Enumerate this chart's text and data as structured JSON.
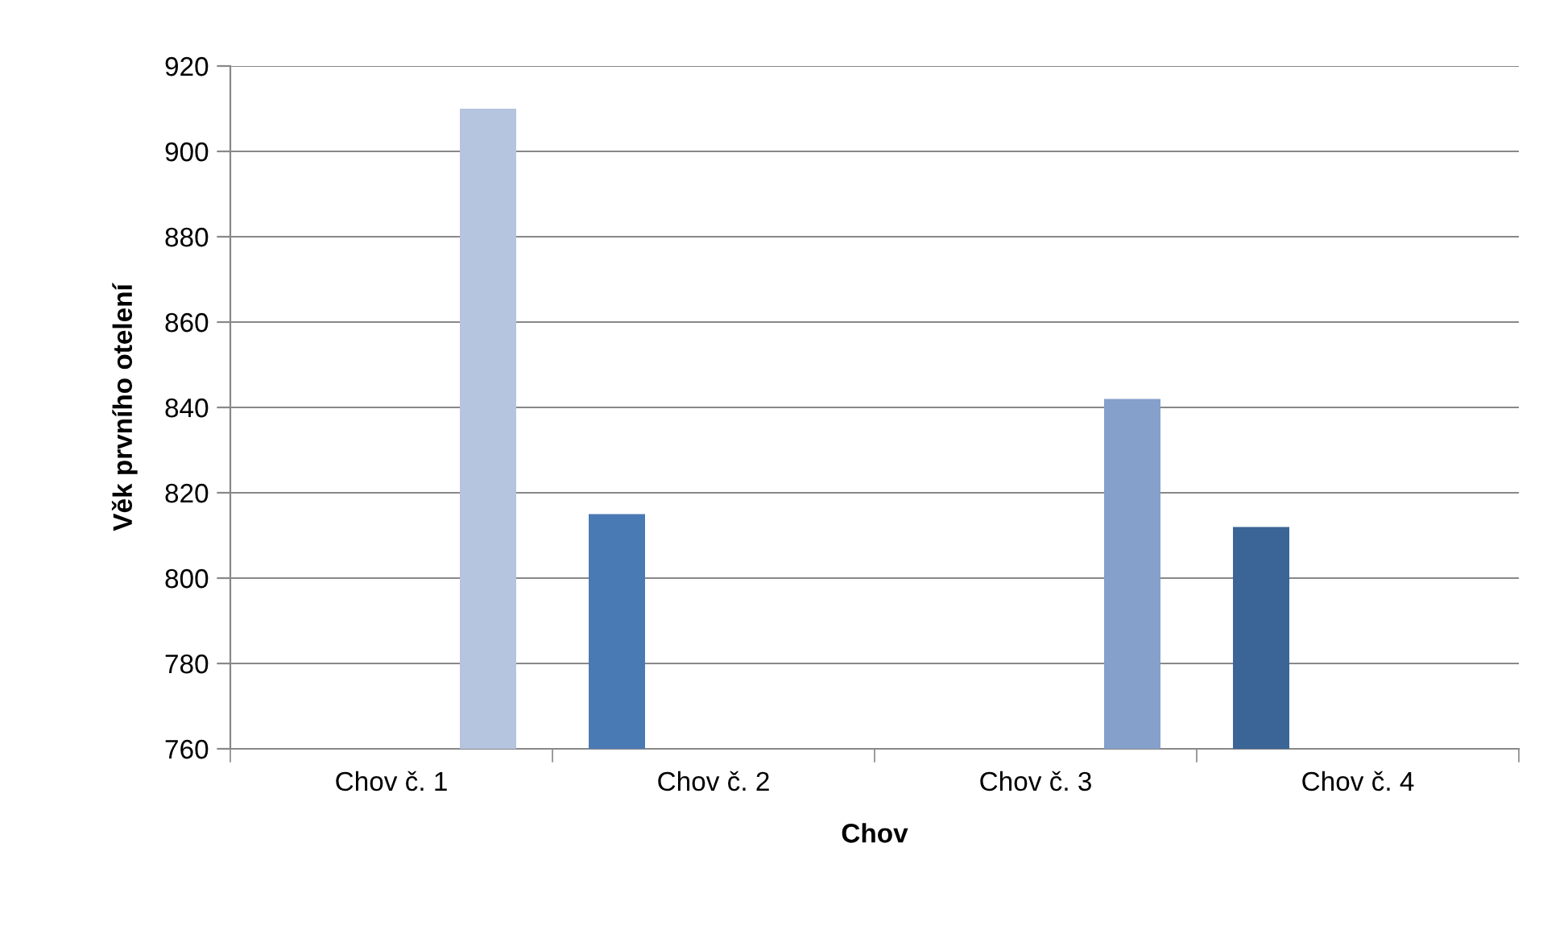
{
  "chart_data": {
    "type": "bar",
    "xlabel": "Chov",
    "ylabel": "Věk prvního otelení",
    "categories": [
      "Chov č. 1",
      "Chov č. 2",
      "Chov č. 3",
      "Chov č. 4"
    ],
    "series": [
      {
        "colors": [
          "#4a7ab4",
          "#4a7ab4",
          "#3b6596",
          "#3b6596"
        ],
        "values": [
          null,
          815,
          null,
          812
        ]
      },
      {
        "colors": [
          "#b5c4df",
          "#b5c4df",
          "#84a0cb",
          "#84a0cb"
        ],
        "values": [
          910,
          null,
          842,
          null
        ]
      }
    ],
    "ylim": [
      760,
      920
    ],
    "yticks": [
      760,
      780,
      800,
      820,
      840,
      860,
      880,
      900,
      920
    ],
    "grid": "y",
    "legend": false
  }
}
